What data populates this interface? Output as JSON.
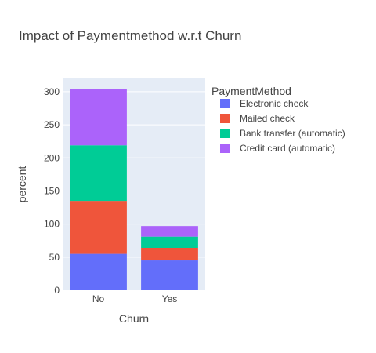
{
  "chart_data": {
    "type": "bar",
    "stacked": true,
    "title": "Impact of Paymentmethod w.r.t Churn",
    "xlabel": "Churn",
    "ylabel": "percent",
    "categories": [
      "No",
      "Yes"
    ],
    "ylim": [
      0,
      320
    ],
    "yticks": [
      0,
      50,
      100,
      150,
      200,
      250,
      300
    ],
    "grid": true,
    "legend": {
      "title": "PaymentMethod",
      "placement": "right"
    },
    "series": [
      {
        "name": "Electronic check",
        "color": "#636efa",
        "values": [
          55,
          45
        ]
      },
      {
        "name": "Mailed check",
        "color": "#ef553b",
        "values": [
          80,
          19
        ]
      },
      {
        "name": "Bank transfer (automatic)",
        "color": "#00cc96",
        "values": [
          84,
          17
        ]
      },
      {
        "name": "Credit card (automatic)",
        "color": "#ab63fa",
        "values": [
          85,
          16
        ]
      }
    ]
  }
}
